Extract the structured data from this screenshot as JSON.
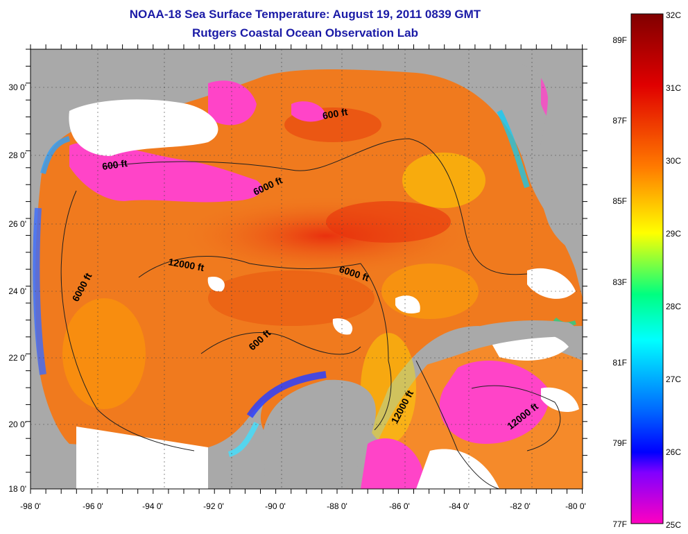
{
  "title_line1": "NOAA-18 Sea Surface Temperature:  August 19, 2011 0839 GMT",
  "title_line2": "Rutgers Coastal Ocean Observation Lab",
  "x_ticks": [
    "-98 0'",
    "-96 0'",
    "-94 0'",
    "-92 0'",
    "-90 0'",
    "-88 0'",
    "-86 0'",
    "-84 0'",
    "-82 0'",
    "-80 0'"
  ],
  "y_ticks": [
    "30 0'",
    "28 0'",
    "26 0'",
    "24 0'",
    "22 0'",
    "20 0'",
    "18 0'"
  ],
  "contour_labels": [
    "600 ft",
    "600 ft",
    "6000 ft",
    "12000 ft",
    "6000 ft",
    "6000 ft",
    "600 ft",
    "12000 ft",
    "12000 ft"
  ],
  "colorbar": {
    "celsius_labels": [
      "32C",
      "31C",
      "30C",
      "29C",
      "28C",
      "27C",
      "26C",
      "25C"
    ],
    "fahrenheit_labels": [
      "89F",
      "87F",
      "85F",
      "83F",
      "81F",
      "79F",
      "77F"
    ]
  },
  "colors": {
    "title": "#1a1aa6",
    "land": "#a9a9a9",
    "ocean_warm": "#f07a1e",
    "cloud_white": "#ffffff",
    "cloud_pink": "#ff44c8"
  }
}
